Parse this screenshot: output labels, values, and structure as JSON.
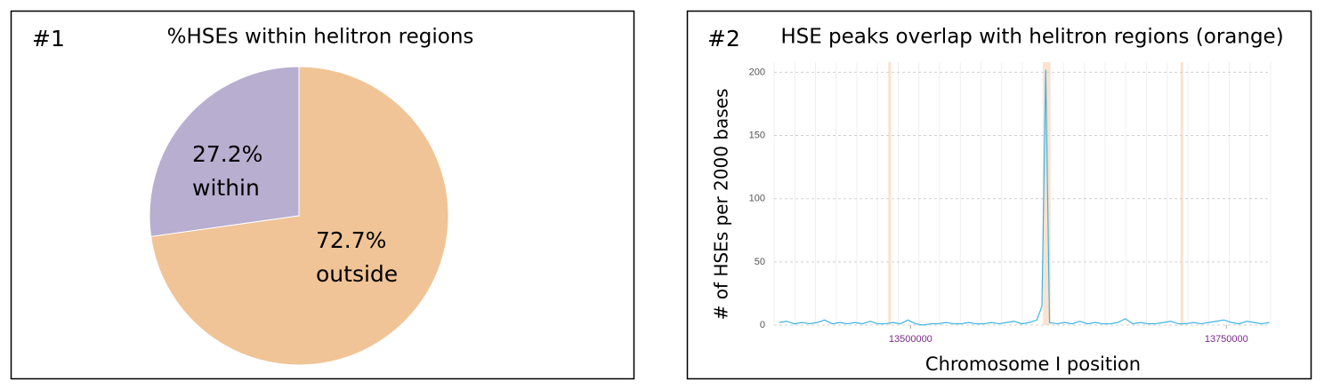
{
  "chart_data": [
    {
      "type": "pie",
      "panel_label": "#1",
      "title": "%HSEs within helitron regions",
      "categories": [
        "within",
        "outside"
      ],
      "values": [
        27.2,
        72.7
      ],
      "value_labels": [
        "27.2%",
        "72.7%"
      ],
      "colors": [
        "#b8aed0",
        "#f0c496"
      ]
    },
    {
      "type": "line",
      "panel_label": "#2",
      "title": "HSE peaks overlap with helitron regions (orange)",
      "ylabel": "# of HSEs per 2000 bases",
      "xlabel": "Chromosome I position",
      "xlim": [
        13392000,
        13785000
      ],
      "ylim": [
        0,
        208
      ],
      "xticks": [
        13500000,
        13750000
      ],
      "yticks": [
        0,
        50,
        100,
        150,
        200
      ],
      "grid": true,
      "helitron_regions": [
        [
          13482400,
          13484500
        ],
        [
          13605000,
          13610800
        ],
        [
          13713700,
          13715800
        ]
      ],
      "region_color": "#fbe2cf",
      "series": [
        {
          "color": "#3fb4e0",
          "x": [
            13396000,
            13402000,
            13408000,
            13414000,
            13420000,
            13426000,
            13432000,
            13438000,
            13444000,
            13450000,
            13456000,
            13462000,
            13468000,
            13474000,
            13480000,
            13486000,
            13492000,
            13498000,
            13504000,
            13510000,
            13516000,
            13522000,
            13528000,
            13534000,
            13540000,
            13546000,
            13552000,
            13558000,
            13564000,
            13570000,
            13576000,
            13582000,
            13588000,
            13594000,
            13600000,
            13604000,
            13607000,
            13610000,
            13616000,
            13622000,
            13628000,
            13634000,
            13640000,
            13646000,
            13652000,
            13658000,
            13664000,
            13670000,
            13676000,
            13682000,
            13688000,
            13694000,
            13700000,
            13706000,
            13712000,
            13718000,
            13724000,
            13730000,
            13736000,
            13742000,
            13748000,
            13754000,
            13760000,
            13766000,
            13772000,
            13778000,
            13784000
          ],
          "values": [
            2,
            3,
            1,
            2,
            1,
            2,
            4,
            1,
            2,
            1,
            2,
            1,
            3,
            1,
            1,
            2,
            1,
            4,
            1,
            0,
            1,
            1,
            2,
            1,
            1,
            2,
            1,
            1,
            2,
            1,
            2,
            3,
            1,
            2,
            4,
            15,
            202,
            2,
            1,
            2,
            1,
            3,
            1,
            2,
            1,
            1,
            2,
            5,
            1,
            2,
            1,
            1,
            2,
            3,
            1,
            1,
            2,
            1,
            2,
            3,
            4,
            2,
            1,
            3,
            2,
            1,
            2
          ]
        }
      ]
    }
  ]
}
